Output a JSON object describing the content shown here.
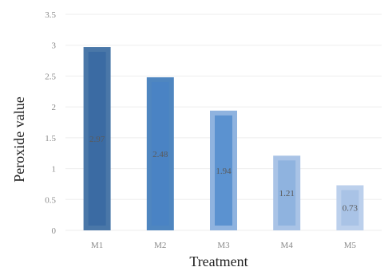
{
  "chart_data": {
    "type": "bar",
    "title": "",
    "xlabel": "Treatment",
    "ylabel": "Peroxide value",
    "categories": [
      "M1",
      "M2",
      "M3",
      "M4",
      "M5"
    ],
    "values": [
      2.97,
      2.48,
      1.94,
      1.21,
      0.73
    ],
    "data_labels": [
      "2.97",
      "2.48",
      "1.94",
      "1.21",
      "0.73"
    ],
    "ylim": [
      0,
      3.5
    ],
    "yticks": [
      0,
      0.5,
      1,
      1.5,
      2,
      2.5,
      3,
      3.5
    ],
    "ytick_labels": [
      "0",
      "0.5",
      "1",
      "1.5",
      "2",
      "2.5",
      "3",
      "3.5"
    ],
    "grid": true,
    "legend": "none",
    "colors": {
      "bars": [
        "#4a77a8",
        "#4f86c0",
        "#8fb3df",
        "#a9c3e6",
        "#bcd0ec"
      ],
      "bar_inner": [
        "#3b6ba3",
        "#4a83c4",
        "#5b92d0",
        "#8fb3df",
        "#a9c3e6"
      ],
      "grid": "#eeeeee",
      "tick_text": "#8a8a8a",
      "axis_title": "#222222"
    }
  }
}
